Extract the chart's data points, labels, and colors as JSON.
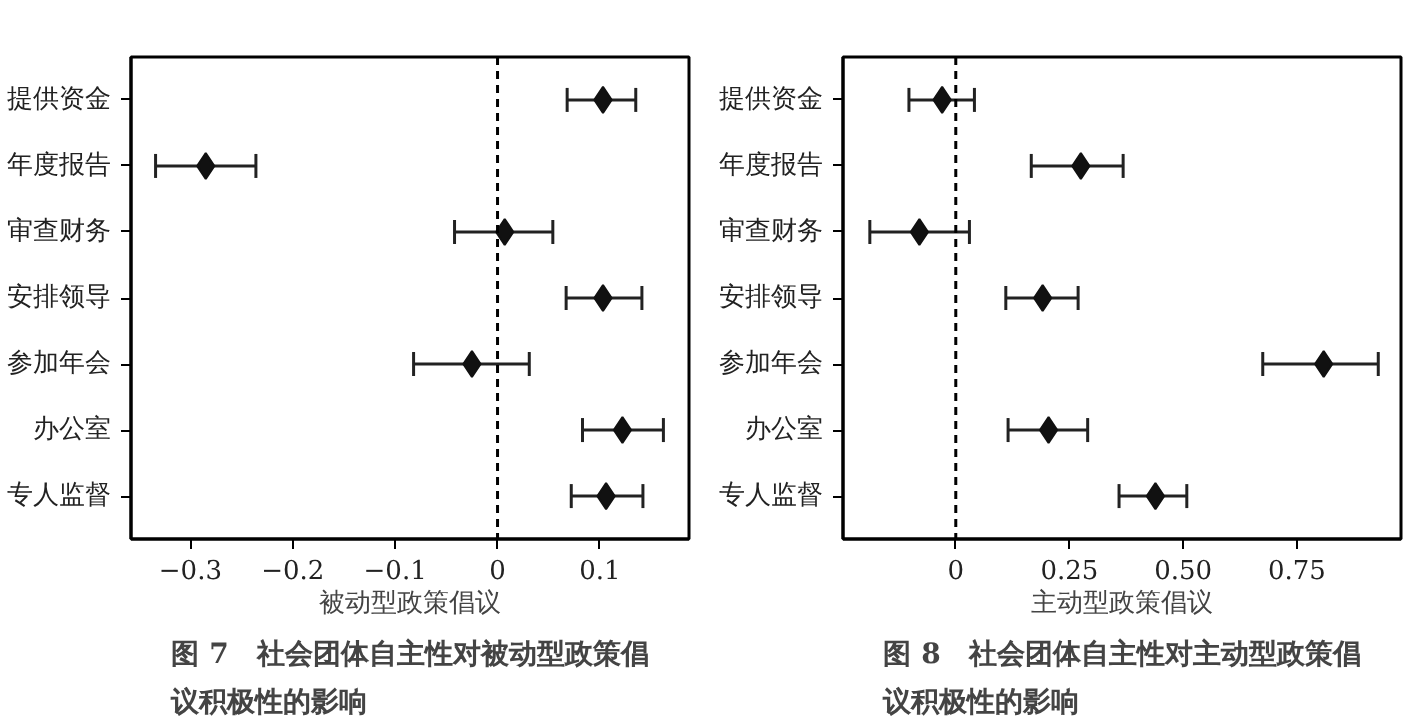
{
  "chart_data": [
    {
      "type": "scatter",
      "orientation": "horizontal",
      "title": "图 7　社会团体自主性对被动型政策倡议积极性的影响",
      "xlabel": "被动型政策倡议",
      "categories": [
        "提供资金",
        "年度报告",
        "审查财务",
        "安排领导",
        "参加年会",
        "办公室",
        "专人监督"
      ],
      "series": [
        {
          "color": "#111111",
          "values": [
            0.103,
            -0.285,
            0.007,
            0.103,
            -0.025,
            0.122,
            0.106
          ],
          "errors": [
            [
              0.068,
              0.135
            ],
            [
              -0.334,
              -0.236
            ],
            [
              -0.042,
              0.054
            ],
            [
              0.067,
              0.141
            ],
            [
              -0.082,
              0.031
            ],
            [
              0.083,
              0.162
            ],
            [
              0.072,
              0.142
            ]
          ]
        }
      ],
      "xlim": [
        -0.358,
        0.187
      ],
      "xticks": [
        {
          "value": -0.3,
          "label": "−0.3"
        },
        {
          "value": -0.2,
          "label": "−0.2"
        },
        {
          "value": -0.1,
          "label": "−0.1"
        },
        0,
        0.1
      ],
      "ref_lines": [
        {
          "axis": "x",
          "value": 0,
          "line_style": "dashed",
          "color": "#000000"
        }
      ],
      "marker": "diamond",
      "grid": false
    },
    {
      "type": "scatter",
      "orientation": "horizontal",
      "title": "图 8　社会团体自主性对主动型政策倡议积极性的影响",
      "xlabel": "主动型政策倡议",
      "categories": [
        "提供资金",
        "年度报告",
        "审查财务",
        "安排领导",
        "参加年会",
        "办公室",
        "专人监督"
      ],
      "series": [
        {
          "color": "#111111",
          "values": [
            -0.03,
            0.275,
            -0.08,
            0.191,
            0.809,
            0.204,
            0.439
          ],
          "errors": [
            [
              -0.103,
              0.041
            ],
            [
              0.166,
              0.368
            ],
            [
              -0.189,
              0.03
            ],
            [
              0.11,
              0.269
            ],
            [
              0.675,
              0.929
            ],
            [
              0.115,
              0.29
            ],
            [
              0.359,
              0.508
            ]
          ]
        }
      ],
      "xlim": [
        -0.248,
        0.979
      ],
      "xticks": [
        0,
        0.25,
        {
          "value": 0.5,
          "label": "0.50"
        },
        0.75
      ],
      "ref_lines": [
        {
          "axis": "x",
          "value": 0,
          "line_style": "dashed",
          "color": "#000000"
        }
      ],
      "marker": "diamond",
      "grid": false
    }
  ]
}
